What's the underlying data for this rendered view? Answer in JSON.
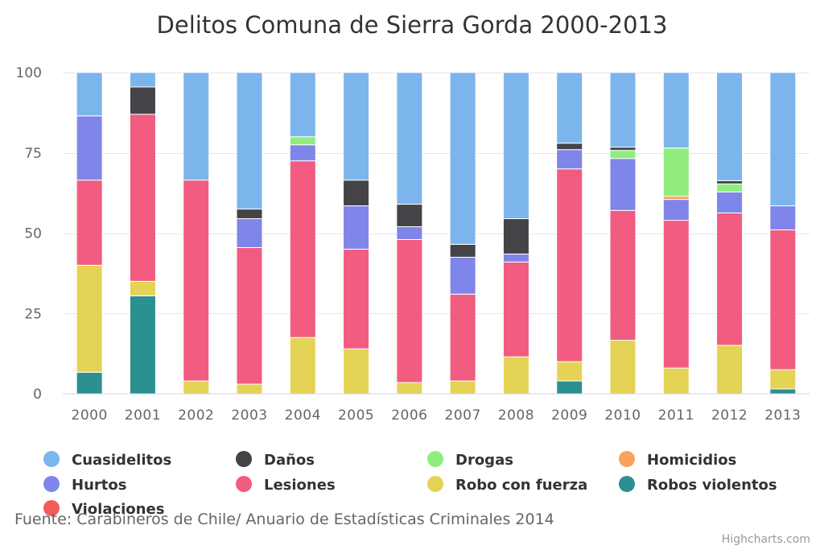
{
  "chart_data": {
    "type": "bar",
    "stacked": "percent",
    "title": "Delitos Comuna de Sierra Gorda 2000-2013",
    "categories": [
      "2000",
      "2001",
      "2002",
      "2003",
      "2004",
      "2005",
      "2006",
      "2007",
      "2008",
      "2009",
      "2010",
      "2011",
      "2012",
      "2013"
    ],
    "ylim": [
      0,
      100
    ],
    "yticks": [
      0,
      25,
      50,
      75,
      100
    ],
    "grid": true,
    "legend_position": "bottom",
    "series": [
      {
        "name": "Cuasidelitos",
        "color": "#7cb5ec",
        "values": [
          13.5,
          4.5,
          33.5,
          42.5,
          20.0,
          33.5,
          41.0,
          53.5,
          45.5,
          22.0,
          23.0,
          23.5,
          33.5,
          41.5
        ]
      },
      {
        "name": "Daños",
        "color": "#434348",
        "values": [
          0,
          8.5,
          0,
          3.0,
          0,
          8.0,
          7.0,
          4.0,
          11.0,
          2.0,
          1.0,
          0,
          1.0,
          0
        ]
      },
      {
        "name": "Drogas",
        "color": "#90ed7d",
        "values": [
          0,
          0,
          0,
          0,
          2.5,
          0,
          0,
          0,
          0,
          0,
          2.5,
          15.0,
          2.5,
          0
        ]
      },
      {
        "name": "Homicidios",
        "color": "#f7a35c",
        "values": [
          0,
          0,
          0,
          0,
          0,
          0,
          0,
          0,
          0,
          0,
          0,
          1.0,
          0,
          0
        ]
      },
      {
        "name": "Hurtos",
        "color": "#8085e9",
        "values": [
          20.0,
          0,
          0,
          9.0,
          5.0,
          13.5,
          4.0,
          11.5,
          2.5,
          6.0,
          16.0,
          6.5,
          6.5,
          7.5
        ]
      },
      {
        "name": "Lesiones",
        "color": "#f15c80",
        "values": [
          26.5,
          52.0,
          62.5,
          42.5,
          55.0,
          31.0,
          44.5,
          27.0,
          29.5,
          60.0,
          40.0,
          46.0,
          41.0,
          43.5
        ]
      },
      {
        "name": "Robo con fuerza",
        "color": "#e4d354",
        "values": [
          33.3,
          4.5,
          4.0,
          3.0,
          17.5,
          14.0,
          3.5,
          4.0,
          11.5,
          6.0,
          16.5,
          8.0,
          15.0,
          6.0
        ]
      },
      {
        "name": "Robos violentos",
        "color": "#2b908f",
        "values": [
          6.7,
          30.5,
          0,
          0,
          0,
          0,
          0,
          0,
          0,
          4.0,
          0,
          0,
          0,
          1.5
        ]
      },
      {
        "name": "Violaciones",
        "color": "#f45b5b",
        "values": [
          0,
          0,
          0,
          0,
          0,
          0,
          0,
          0,
          0,
          0,
          0,
          0,
          0,
          0
        ]
      }
    ]
  },
  "source": "Fuente: Carabineros de Chile/ Anuario de Estadísticas Criminales 2014",
  "credits": "Highcharts.com"
}
